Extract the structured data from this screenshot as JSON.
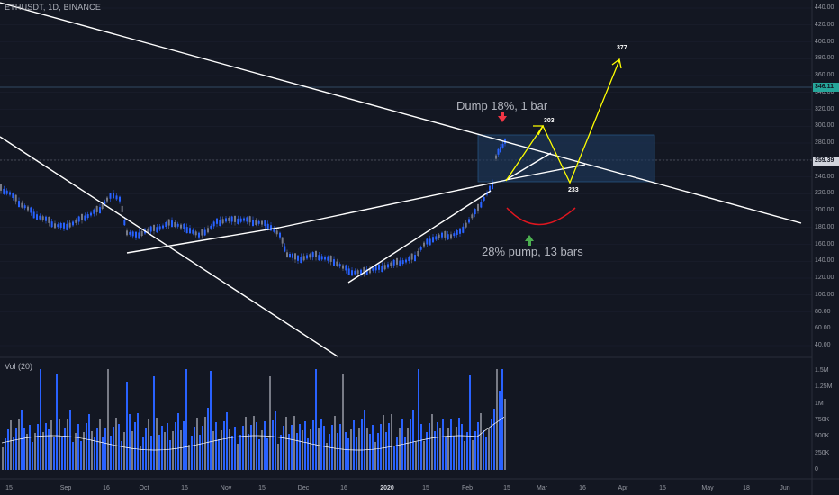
{
  "header": {
    "symbol": "ETHUSDT, 1D, BINANCE"
  },
  "volume_panel": {
    "label": "Vol (20)",
    "y_ticks": [
      "1.5M",
      "1.25M",
      "1M",
      "750K",
      "500K",
      "250K",
      "0"
    ]
  },
  "price_axis": {
    "ticks": [
      "440.00",
      "420.00",
      "400.00",
      "380.00",
      "360.00",
      "340.00",
      "320.00",
      "300.00",
      "280.00",
      "260.00",
      "240.00",
      "220.00",
      "200.00",
      "180.00",
      "160.00",
      "140.00",
      "120.00",
      "100.00",
      "80.00",
      "60.00",
      "40.00"
    ],
    "highlight_green": "346.11",
    "current_price": "259.39"
  },
  "time_axis": {
    "labels": [
      "15",
      "Sep",
      "16",
      "Oct",
      "16",
      "Nov",
      "15",
      "Dec",
      "16",
      "2020",
      "15",
      "Feb",
      "15",
      "Mar",
      "16",
      "Apr",
      "15",
      "May",
      "18",
      "Jun"
    ]
  },
  "annotations": {
    "dump_text": "Dump 18%, 1 bar",
    "pump_text": "28% pump, 13 bars",
    "target_303": "303",
    "target_233": "233",
    "target_377": "377"
  },
  "colors": {
    "background": "#131722",
    "up_candle": "#2962ff",
    "down_candle": "#787b86",
    "trendline": "#ffffff",
    "projection": "#ffff00",
    "arc": "#e0161f",
    "green_tag": "#26a69a",
    "red_arrow": "#f23645",
    "green_arrow": "#4caf50"
  }
}
